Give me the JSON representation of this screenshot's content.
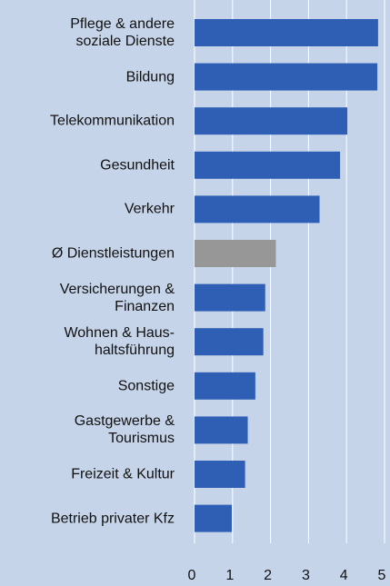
{
  "chart_data": {
    "type": "barh",
    "categories": [
      "Pflege & andere\nsoziale Dienste",
      "Bildung",
      "Telekommunikation",
      "Gesundheit",
      "Verkehr",
      "Ø Dienstleistungen",
      "Versicherungen &\nFinanzen",
      "Wohnen & Haus-\nhaltsführung",
      "Sonstige",
      "Gastgewerbe &\nTourismus",
      "Freizeit & Kultur",
      "Betrieb privater Kfz"
    ],
    "values": [
      4.83,
      4.81,
      4.02,
      3.83,
      3.29,
      2.14,
      1.86,
      1.81,
      1.6,
      1.4,
      1.33,
      0.98
    ],
    "colors": [
      "#2e5fb4",
      "#2e5fb4",
      "#2e5fb4",
      "#2e5fb4",
      "#2e5fb4",
      "#979797",
      "#2e5fb4",
      "#2e5fb4",
      "#2e5fb4",
      "#2e5fb4",
      "#2e5fb4",
      "#2e5fb4"
    ],
    "xlim": [
      0,
      5
    ],
    "xticks": [
      0,
      1,
      2,
      3,
      4,
      5
    ],
    "grid": true
  }
}
